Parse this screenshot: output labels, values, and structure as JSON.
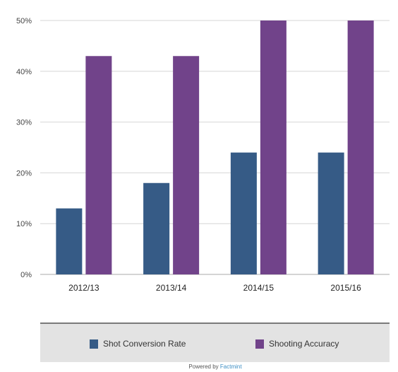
{
  "chart_data": {
    "type": "bar",
    "categories": [
      "2012/13",
      "2013/14",
      "2014/15",
      "2015/16"
    ],
    "series": [
      {
        "name": "Shot Conversion Rate",
        "values": [
          13,
          18,
          24,
          24
        ],
        "color": "#365b86"
      },
      {
        "name": "Shooting Accuracy",
        "values": [
          43,
          43,
          50,
          50
        ],
        "color": "#71438a"
      }
    ],
    "yticks": [
      "0%",
      "10%",
      "20%",
      "30%",
      "40%",
      "50%"
    ],
    "ylim": [
      0,
      50
    ],
    "grid": true,
    "legend_position": "bottom",
    "title": "",
    "xlabel": "",
    "ylabel": ""
  },
  "legend": {
    "items": [
      "Shot Conversion Rate",
      "Shooting Accuracy"
    ]
  },
  "credit": {
    "prefix": "Powered by",
    "brand": "Factmint"
  }
}
